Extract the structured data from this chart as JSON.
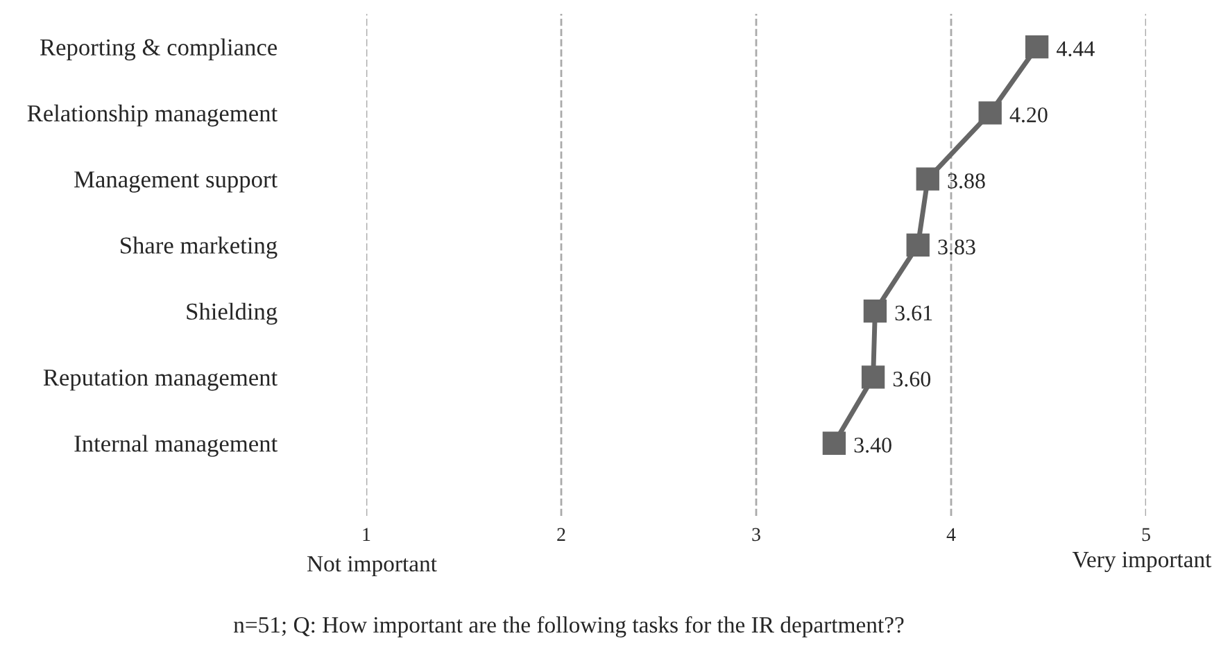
{
  "chart_data": {
    "type": "line",
    "orientation": "horizontal",
    "categories": [
      "Reporting & compliance",
      "Relationship management",
      "Management support",
      "Share marketing",
      "Shielding",
      "Reputation management",
      "Internal management"
    ],
    "series": [
      {
        "color": "#666666",
        "values": [
          4.44,
          4.2,
          3.88,
          3.83,
          3.61,
          3.6,
          3.4
        ],
        "value_labels": [
          "4.44",
          "4.20",
          "3.88",
          "3.83",
          "3.61",
          "3.60",
          "3.40"
        ]
      }
    ],
    "xlim": [
      1,
      5
    ],
    "xticks": [
      1,
      2,
      3,
      4,
      5
    ],
    "grid": "x",
    "marker": "square",
    "line_style": "solid",
    "annotations": [
      "Not important",
      "Very important",
      "n=51; Q: How important are the following tasks for the IR department??"
    ]
  }
}
